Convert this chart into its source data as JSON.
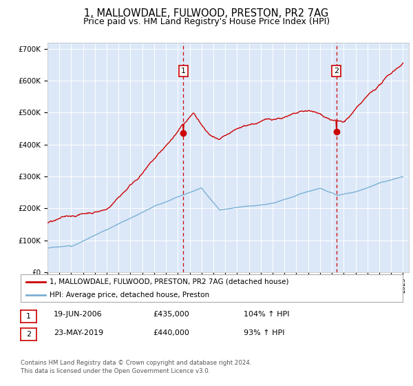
{
  "title": "1, MALLOWDALE, FULWOOD, PRESTON, PR2 7AG",
  "subtitle": "Price paid vs. HM Land Registry's House Price Index (HPI)",
  "legend_label_red": "1, MALLOWDALE, FULWOOD, PRESTON, PR2 7AG (detached house)",
  "legend_label_blue": "HPI: Average price, detached house, Preston",
  "annotation1_date": "19-JUN-2006",
  "annotation1_price": "£435,000",
  "annotation1_hpi": "104% ↑ HPI",
  "annotation2_date": "23-MAY-2019",
  "annotation2_price": "£440,000",
  "annotation2_hpi": "93% ↑ HPI",
  "footer1": "Contains HM Land Registry data © Crown copyright and database right 2024.",
  "footer2": "This data is licensed under the Open Government Licence v3.0.",
  "xlim_start": 1995.0,
  "xlim_end": 2025.5,
  "ylim_bottom": 0,
  "ylim_top": 720000,
  "yticks": [
    0,
    100000,
    200000,
    300000,
    400000,
    500000,
    600000,
    700000
  ],
  "ytick_labels": [
    "£0",
    "£100K",
    "£200K",
    "£300K",
    "£400K",
    "£500K",
    "£600K",
    "£700K"
  ],
  "xticks": [
    1995,
    1996,
    1997,
    1998,
    1999,
    2000,
    2001,
    2002,
    2003,
    2004,
    2005,
    2006,
    2007,
    2008,
    2009,
    2010,
    2011,
    2012,
    2013,
    2014,
    2015,
    2016,
    2017,
    2018,
    2019,
    2020,
    2021,
    2022,
    2023,
    2024,
    2025
  ],
  "vline1_x": 2006.47,
  "vline2_x": 2019.39,
  "dot1_x": 2006.47,
  "dot1_y": 435000,
  "dot2_x": 2019.39,
  "dot2_y": 440000,
  "background_color": "#dce8f8",
  "red_color": "#cc0000",
  "blue_color": "#7ab0d4",
  "vline_color": "#cc0000",
  "grid_color": "#ffffff",
  "title_fontsize": 10.5,
  "subtitle_fontsize": 9
}
